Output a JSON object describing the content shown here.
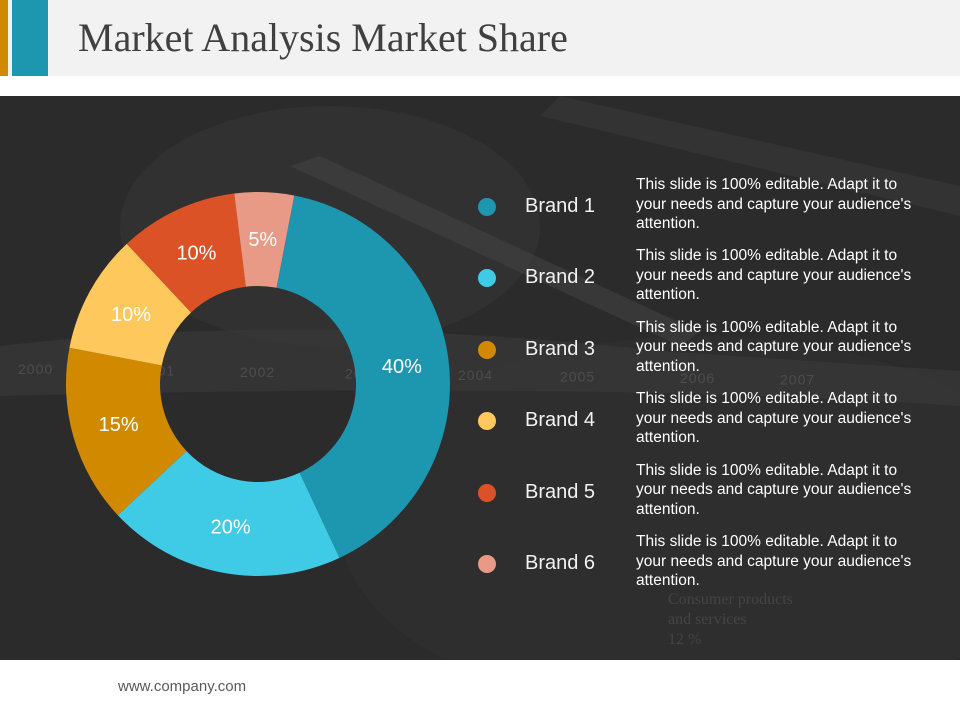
{
  "slide": {
    "title": "Market Analysis Market Share",
    "footer": "www.company.com"
  },
  "colors": {
    "accent_orange": "#d18a00",
    "accent_teal": "#1d96b0",
    "panel_bg": "#2b2b2b"
  },
  "background_text": {
    "years": [
      "2000",
      "2001",
      "2002",
      "2003",
      "2004",
      "2005",
      "2006",
      "2007"
    ],
    "annotation": [
      "Consumer products",
      "and services",
      "12 %"
    ]
  },
  "chart_data": {
    "type": "pie",
    "donut": true,
    "categories": [
      "Brand 1",
      "Brand 2",
      "Brand 3",
      "Brand 4",
      "Brand 5",
      "Brand 6"
    ],
    "values": [
      40,
      20,
      15,
      10,
      10,
      5
    ],
    "labels": [
      "40%",
      "20%",
      "15%",
      "10%",
      "10%",
      "5%"
    ],
    "colors": [
      "#1d96b0",
      "#3fcbe6",
      "#d18a00",
      "#ffc85c",
      "#dc5227",
      "#e89a86"
    ],
    "legend_placement": "right",
    "descriptions": [
      "This slide is 100% editable. Adapt it to your needs and capture your audience's attention.",
      "This slide is 100% editable. Adapt it to your needs and capture your audience's attention.",
      "This slide is 100% editable. Adapt it to your needs and capture your audience's attention.",
      "This slide is 100% editable. Adapt it to your needs and capture your audience's attention.",
      "This slide is 100% editable. Adapt it to your needs and capture your audience's attention.",
      "This slide is 100% editable. Adapt it to your needs and capture your audience's attention."
    ]
  }
}
